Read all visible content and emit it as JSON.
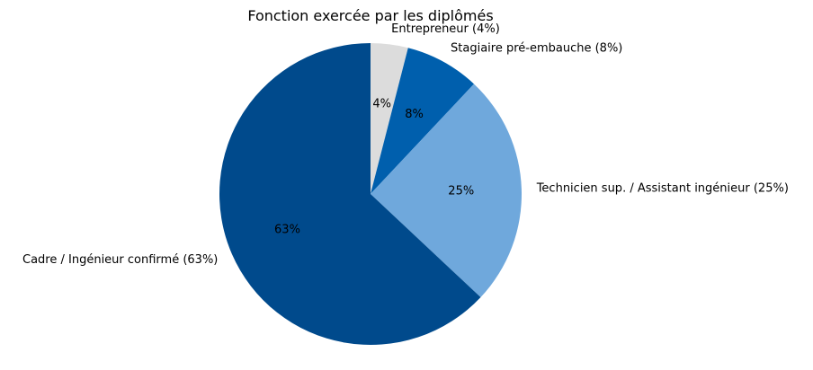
{
  "chart_data": {
    "type": "pie",
    "title": "Fonction exercée par les diplômés",
    "start_angle_deg": 90,
    "direction": "clockwise",
    "slices": [
      {
        "label": "Entrepreneur (4%)",
        "pct_label": "4%",
        "value": 4,
        "color": "#dcdcdc"
      },
      {
        "label": "Stagiaire pré-embauche (8%)",
        "pct_label": "8%",
        "value": 8,
        "color": "#005fad"
      },
      {
        "label": "Technicien sup. / Assistant ingénieur (25%)",
        "pct_label": "25%",
        "value": 25,
        "color": "#6fa8dc"
      },
      {
        "label": "Cadre / Ingénieur confirmé (63%)",
        "pct_label": "63%",
        "value": 63,
        "color": "#004a8c"
      }
    ]
  }
}
